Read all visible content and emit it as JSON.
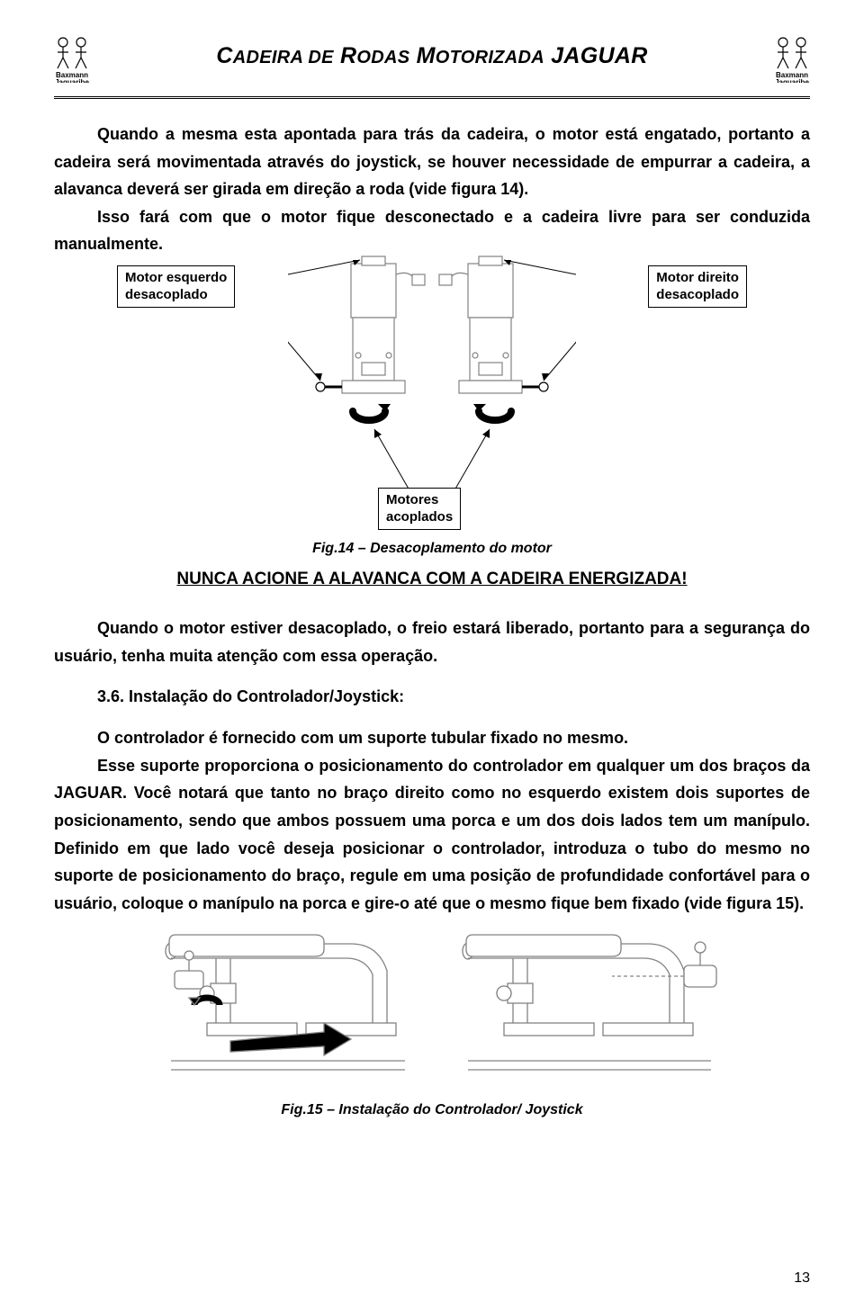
{
  "header": {
    "title_html": "C<span class='small-caps'>ADEIRA DE</span> R<span class='small-caps'>ODAS</span> M<span class='small-caps'>OTORIZADA</span> JAGUAR",
    "logo_text_top": "Baxmann",
    "logo_text_bottom": "Jaguaribe"
  },
  "p1": "Quando a mesma esta apontada para trás da cadeira, o motor está engatado, portanto a cadeira será movimentada através do joystick, se houver necessidade de empurrar a cadeira, a alavanca deverá ser girada em direção a roda (vide figura 14).",
  "p2": "Isso fará com que o motor fique desconectado e a cadeira livre para ser conduzida manualmente.",
  "fig14": {
    "label_left_l1": "Motor esquerdo",
    "label_left_l2": "desacoplado",
    "label_right_l1": "Motor direito",
    "label_right_l2": "desacoplado",
    "label_bottom_l1": "Motores",
    "label_bottom_l2": "acoplados",
    "caption": "Fig.14 – Desacoplamento do motor"
  },
  "warning": "NUNCA ACIONE A ALAVANCA COM A CADEIRA ENERGIZADA!",
  "p3": "Quando o motor estiver desacoplado, o freio estará liberado, portanto para a segurança do usuário, tenha muita atenção com essa operação.",
  "section_3_6": "3.6. Instalação do Controlador/Joystick:",
  "p4": "O controlador é fornecido com um suporte tubular fixado no mesmo.",
  "p5": "Esse suporte proporciona o posicionamento do controlador em qualquer um dos braços da JAGUAR. Você notará que tanto no braço direito como no esquerdo existem dois suportes de posicionamento, sendo que ambos possuem uma porca e um dos dois lados tem um manípulo. Definido em que lado você deseja posicionar o controlador, introduza o tubo do mesmo no suporte de posicionamento do braço, regule em uma posição de profundidade confortável para o usuário, coloque o manípulo na porca e gire-o até que o mesmo fique bem fixado (vide figura 15).",
  "fig15": {
    "caption": "Fig.15 – Instalação do Controlador/ Joystick"
  },
  "page_number": "13",
  "colors": {
    "text": "#000000",
    "bg": "#ffffff",
    "line_gray": "#828282"
  }
}
